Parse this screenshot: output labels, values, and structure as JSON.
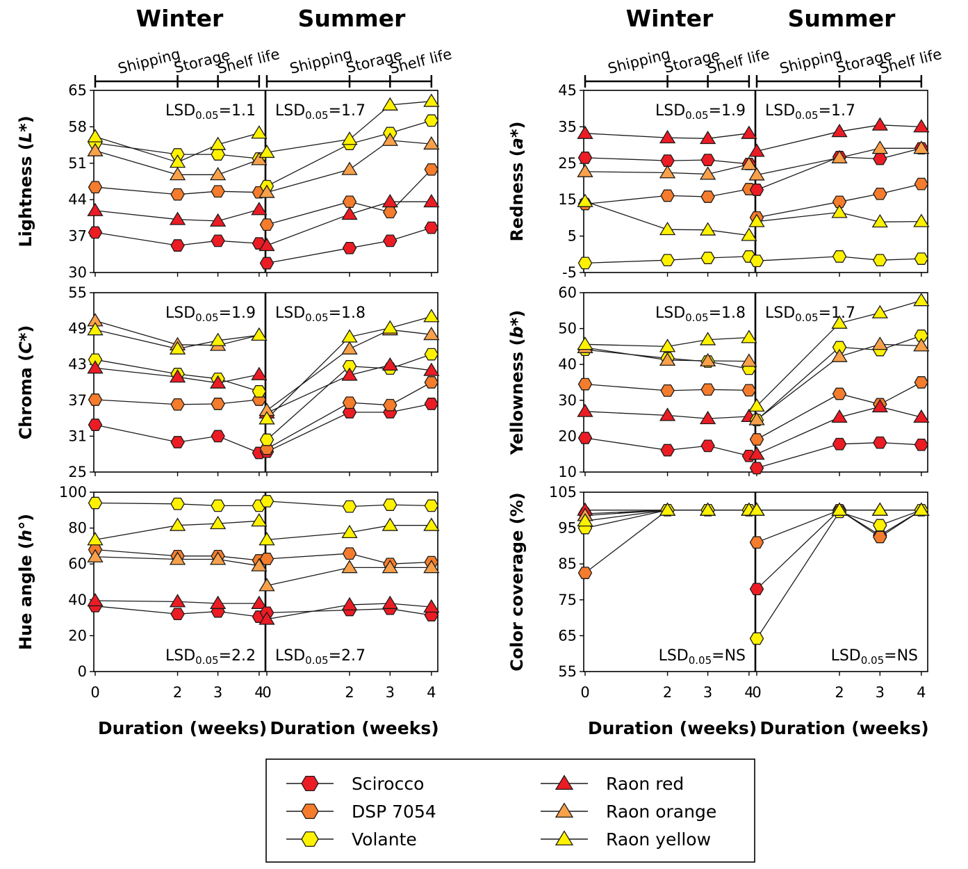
{
  "figure": {
    "seasons": [
      "Winter",
      "Summer"
    ],
    "stage_labels": [
      "Shipping",
      "Storage",
      "Shelf life"
    ],
    "x_ticks": [
      0,
      2,
      3,
      4
    ],
    "xlabel": "Duration (weeks)",
    "lsd_prefix": "LSD",
    "lsd_sub": "0.05",
    "colors": {
      "red": "#ec1c24",
      "orange": "#f47c2c",
      "lightorange": "#f8a14a",
      "yellow": "#fef200",
      "line": "#1a1a1a"
    }
  },
  "legend": {
    "entries": [
      {
        "label": "Scirocco",
        "marker": "hexagon",
        "color": "red"
      },
      {
        "label": "DSP 7054",
        "marker": "hexagon",
        "color": "orange"
      },
      {
        "label": "Volante",
        "marker": "hexagon",
        "color": "yellow"
      },
      {
        "label": "Raon red",
        "marker": "triangle",
        "color": "red"
      },
      {
        "label": "Raon orange",
        "marker": "triangle",
        "color": "lightorange"
      },
      {
        "label": "Raon yellow",
        "marker": "triangle",
        "color": "yellow"
      }
    ]
  },
  "chart_data": [
    {
      "type": "line",
      "title": "Lightness",
      "ylabel": "Lightness (L*)",
      "ylabel_parts": [
        "Lightness (",
        "L",
        "*)"
      ],
      "ylim": [
        30,
        65
      ],
      "yticks": [
        30,
        37,
        44,
        51,
        58,
        65
      ],
      "x": [
        0,
        2,
        3,
        4
      ],
      "lsd": {
        "Winter": "1.1",
        "Summer": "1.7"
      },
      "lsd_position": "top",
      "series": [
        {
          "name": "Scirocco",
          "Winter": [
            37.7,
            35.2,
            36.1,
            35.6
          ],
          "Summer": [
            31.8,
            34.7,
            36.1,
            38.6
          ]
        },
        {
          "name": "DSP 7054",
          "Winter": [
            46.4,
            45.0,
            45.6,
            45.4
          ],
          "Summer": [
            39.2,
            43.6,
            41.6,
            49.8
          ]
        },
        {
          "name": "Volante",
          "Winter": [
            54.9,
            52.7,
            52.7,
            51.9
          ],
          "Summer": [
            46.6,
            54.7,
            56.8,
            59.2
          ]
        },
        {
          "name": "Raon red",
          "Winter": [
            41.9,
            40.2,
            39.9,
            42.1
          ],
          "Summer": [
            35.2,
            41.2,
            43.6,
            43.6
          ]
        },
        {
          "name": "Raon orange",
          "Winter": [
            53.4,
            48.8,
            48.8,
            51.7
          ],
          "Summer": [
            45.4,
            49.8,
            55.4,
            54.7
          ]
        },
        {
          "name": "Raon yellow",
          "Winter": [
            56.1,
            51.2,
            54.6,
            56.8
          ],
          "Summer": [
            53.1,
            55.6,
            62.2,
            62.9
          ]
        }
      ]
    },
    {
      "type": "line",
      "title": "Chroma",
      "ylabel": "Chroma (C*)",
      "ylabel_parts": [
        "Chroma (",
        "C",
        "*)"
      ],
      "ylim": [
        25,
        55
      ],
      "yticks": [
        25,
        31,
        37,
        43,
        49,
        55
      ],
      "x": [
        0,
        2,
        3,
        4
      ],
      "lsd": {
        "Winter": "1.9",
        "Summer": "1.8"
      },
      "lsd_position": "top",
      "series": [
        {
          "name": "Scirocco",
          "Winter": [
            32.9,
            30.0,
            31.0,
            28.2
          ],
          "Summer": [
            28.4,
            35.0,
            35.0,
            36.4
          ]
        },
        {
          "name": "DSP 7054",
          "Winter": [
            37.1,
            36.3,
            36.4,
            37.1
          ],
          "Summer": [
            28.9,
            36.6,
            36.2,
            40.0
          ]
        },
        {
          "name": "Volante",
          "Winter": [
            43.8,
            41.4,
            40.6,
            38.5
          ],
          "Summer": [
            30.4,
            42.7,
            42.3,
            44.7
          ]
        },
        {
          "name": "Raon red",
          "Winter": [
            42.4,
            40.9,
            39.9,
            41.3
          ],
          "Summer": [
            34.9,
            41.2,
            42.9,
            42.0
          ]
        },
        {
          "name": "Raon orange",
          "Winter": [
            50.3,
            46.3,
            46.2,
            47.9
          ],
          "Summer": [
            35.3,
            45.6,
            48.8,
            48.0
          ]
        },
        {
          "name": "Raon yellow",
          "Winter": [
            48.8,
            45.6,
            47.0,
            47.9
          ],
          "Summer": [
            33.9,
            47.6,
            49.1,
            51.0
          ]
        }
      ]
    },
    {
      "type": "line",
      "title": "Hue angle",
      "ylabel": "Hue angle (h°)",
      "ylabel_parts": [
        "Hue angle (",
        "h",
        "°)"
      ],
      "ylim": [
        0,
        100
      ],
      "yticks": [
        0,
        20,
        40,
        60,
        80,
        100
      ],
      "x": [
        0,
        2,
        3,
        4
      ],
      "lsd": {
        "Winter": "2.2",
        "Summer": "2.7"
      },
      "lsd_position": "bottom",
      "series": [
        {
          "name": "Scirocco",
          "Winter": [
            36.5,
            32.1,
            33.5,
            30.6
          ],
          "Summer": [
            32.8,
            34.3,
            35.0,
            31.4
          ]
        },
        {
          "name": "DSP 7054",
          "Winter": [
            68.0,
            64.4,
            64.4,
            62.0
          ],
          "Summer": [
            62.8,
            65.8,
            60.0,
            61.0
          ]
        },
        {
          "name": "Volante",
          "Winter": [
            94.0,
            93.5,
            92.5,
            92.5
          ],
          "Summer": [
            95.0,
            92.0,
            93.0,
            92.5
          ]
        },
        {
          "name": "Raon red",
          "Winter": [
            39.5,
            39.0,
            38.0,
            38.0
          ],
          "Summer": [
            29.2,
            37.2,
            38.0,
            36.0
          ]
        },
        {
          "name": "Raon orange",
          "Winter": [
            64.0,
            62.6,
            62.6,
            59.0
          ],
          "Summer": [
            47.9,
            58.0,
            58.0,
            58.0
          ]
        },
        {
          "name": "Raon yellow",
          "Winter": [
            73.5,
            81.5,
            82.5,
            84.0
          ],
          "Summer": [
            73.5,
            77.5,
            81.5,
            81.5
          ]
        }
      ]
    },
    {
      "type": "line",
      "title": "Redness",
      "ylabel": "Redness (a*)",
      "ylabel_parts": [
        "Redness (",
        "a",
        "*)"
      ],
      "ylim": [
        -5,
        45
      ],
      "yticks": [
        -5,
        5,
        15,
        25,
        35,
        45
      ],
      "x": [
        0,
        2,
        3,
        4
      ],
      "lsd": {
        "Winter": "1.9",
        "Summer": "1.7"
      },
      "lsd_position": "top",
      "series": [
        {
          "name": "Scirocco",
          "Winter": [
            26.5,
            25.7,
            25.9,
            24.8
          ],
          "Summer": [
            17.7,
            26.7,
            26.2,
            29.1
          ]
        },
        {
          "name": "DSP 7054",
          "Winter": [
            13.8,
            16.1,
            15.8,
            17.9
          ],
          "Summer": [
            10.1,
            14.4,
            16.6,
            19.3
          ]
        },
        {
          "name": "Volante",
          "Winter": [
            -2.4,
            -1.6,
            -1.0,
            -0.6
          ],
          "Summer": [
            -1.8,
            -0.6,
            -1.6,
            -1.2
          ]
        },
        {
          "name": "Raon red",
          "Winter": [
            33.2,
            32.0,
            31.8,
            33.2
          ],
          "Summer": [
            28.3,
            33.7,
            35.5,
            35.0
          ]
        },
        {
          "name": "Raon orange",
          "Winter": [
            22.7,
            22.4,
            22.0,
            24.7
          ],
          "Summer": [
            21.8,
            26.5,
            29.1,
            29.1
          ]
        },
        {
          "name": "Raon yellow",
          "Winter": [
            14.5,
            6.8,
            6.7,
            5.2
          ],
          "Summer": [
            9.0,
            11.5,
            8.9,
            9.0
          ]
        }
      ]
    },
    {
      "type": "line",
      "title": "Yellowness",
      "ylabel": "Yellowness (b*)",
      "ylabel_parts": [
        "Yellowness (",
        "b",
        "*)"
      ],
      "ylim": [
        10,
        60
      ],
      "yticks": [
        10,
        20,
        30,
        40,
        50,
        60
      ],
      "x": [
        0,
        2,
        3,
        4
      ],
      "lsd": {
        "Winter": "1.8",
        "Summer": "1.7"
      },
      "lsd_position": "top",
      "series": [
        {
          "name": "Scirocco",
          "Winter": [
            19.5,
            16.1,
            17.3,
            14.5
          ],
          "Summer": [
            11.1,
            17.8,
            18.2,
            17.6
          ]
        },
        {
          "name": "DSP 7054",
          "Winter": [
            34.5,
            32.7,
            33.0,
            32.8
          ],
          "Summer": [
            19.1,
            31.8,
            28.9,
            35.0
          ]
        },
        {
          "name": "Volante",
          "Winter": [
            44.1,
            41.7,
            40.8,
            38.8
          ],
          "Summer": [
            24.5,
            44.8,
            44.0,
            48.0
          ]
        },
        {
          "name": "Raon red",
          "Winter": [
            26.9,
            25.8,
            24.9,
            25.5
          ],
          "Summer": [
            15.0,
            25.3,
            28.2,
            25.3
          ]
        },
        {
          "name": "Raon orange",
          "Winter": [
            44.7,
            41.2,
            41.0,
            40.9
          ],
          "Summer": [
            24.6,
            42.2,
            45.6,
            45.2
          ]
        },
        {
          "name": "Raon yellow",
          "Winter": [
            45.6,
            45.0,
            46.9,
            47.5
          ],
          "Summer": [
            28.4,
            51.5,
            54.4,
            57.8
          ]
        }
      ]
    },
    {
      "type": "line",
      "title": "Color coverage",
      "ylabel": "Color coverage (%)",
      "ylabel_parts": [
        "Color coverage (%)",
        "",
        ""
      ],
      "ylim": [
        55,
        105
      ],
      "yticks": [
        55,
        65,
        75,
        85,
        95,
        105
      ],
      "x": [
        0,
        2,
        3,
        4
      ],
      "lsd": {
        "Winter": "NS",
        "Summer": "NS"
      },
      "lsd_position": "bottom",
      "series": [
        {
          "name": "Scirocco",
          "Winter": [
            99.0,
            100,
            100,
            100
          ],
          "Summer": [
            78.0,
            100,
            93.0,
            100
          ]
        },
        {
          "name": "DSP 7054",
          "Winter": [
            82.5,
            100,
            100,
            100
          ],
          "Summer": [
            91.0,
            100,
            92.5,
            100
          ]
        },
        {
          "name": "Volante",
          "Winter": [
            95.0,
            100,
            100,
            100
          ],
          "Summer": [
            64.2,
            99.5,
            95.8,
            100
          ]
        },
        {
          "name": "Raon red",
          "Winter": [
            100,
            100,
            100,
            100
          ],
          "Summer": [
            100,
            100,
            100,
            100
          ]
        },
        {
          "name": "Raon orange",
          "Winter": [
            98.5,
            100,
            100,
            100
          ],
          "Summer": [
            100,
            100,
            100,
            100
          ]
        },
        {
          "name": "Raon yellow",
          "Winter": [
            97.0,
            100,
            100,
            100
          ],
          "Summer": [
            100,
            100,
            100,
            100
          ]
        }
      ]
    }
  ]
}
